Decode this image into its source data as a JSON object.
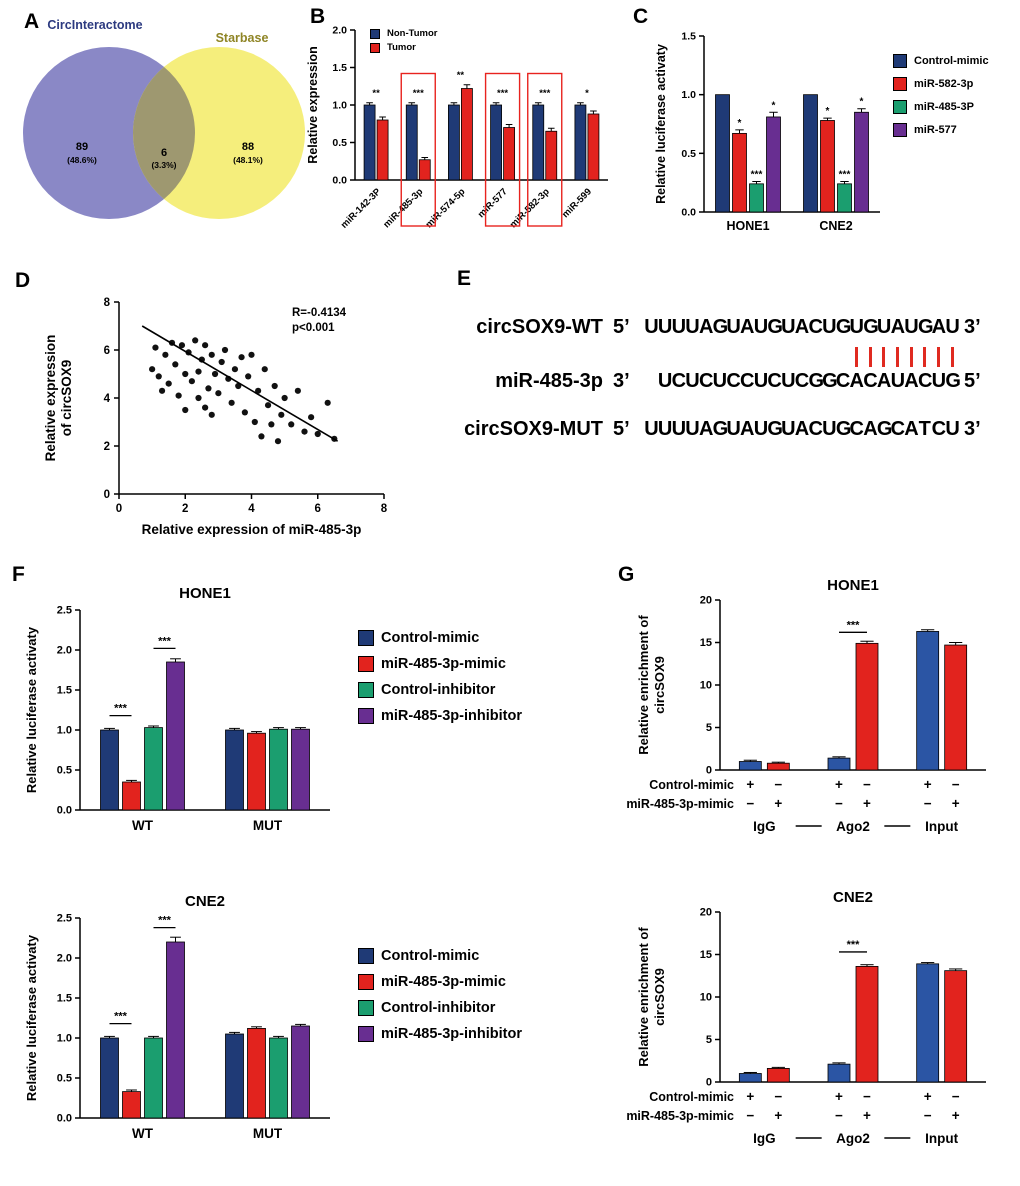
{
  "colors": {
    "navy": "#1f3a76",
    "red": "#e2231e",
    "green": "#1b9e6f",
    "purple": "#682e91",
    "blue2": "#2b55a4",
    "venn_left_fill": "#8a88c6",
    "venn_right_fill": "#f5ee7c",
    "venn_overlap_fill": "#9e9870",
    "venn_left_title": "#2c3a80",
    "venn_right_title": "#8f8526",
    "sig_box": "#e8231e",
    "match_line": "#e02a20"
  },
  "panel_labels": {
    "a": "A",
    "b": "B",
    "c": "C",
    "d": "D",
    "e": "E",
    "f": "F",
    "g": "G"
  },
  "venn": {
    "left_title": "CircInteractome",
    "right_title": "Starbase",
    "left_count": "89",
    "left_pct": "(48.6%)",
    "overlap_count": "6",
    "overlap_pct": "(3.3%)",
    "right_count": "88",
    "right_pct": "(48.1%)"
  },
  "sequence_panel": {
    "rows": [
      {
        "name": "circSOX9-WT",
        "prefix": "5’",
        "seq": "UUUUAGUAUGUACUGUGUAUGAU",
        "suffix": "3’"
      },
      {
        "name": "miR-485-3p",
        "prefix": "3’",
        "seq": "UCUCUCCUCUCGGCACAUACUG",
        "suffix": "5’"
      },
      {
        "name": "circSOX9-MUT",
        "prefix": "5’",
        "seq": "UUUUAGUAUGUACUGCAGCATCU",
        "suffix": "3’"
      }
    ],
    "match_count": 8
  },
  "chart_data": [
    {
      "id": "panel_b",
      "type": "bar",
      "title": "",
      "ylabel": "Relative expression",
      "ylim": [
        0,
        2.0
      ],
      "yticks": [
        0,
        0.5,
        1.0,
        1.5,
        2.0
      ],
      "categories": [
        "miR-142-3P",
        "miR-485-3p",
        "miR-574-5p",
        "miR-577",
        "miR-582-3p",
        "miR-599"
      ],
      "series": [
        {
          "name": "Non-Tumor",
          "color": "navy",
          "values": [
            1.0,
            1.0,
            1.0,
            1.0,
            1.0,
            1.0
          ],
          "errors": [
            0.03,
            0.03,
            0.03,
            0.03,
            0.03,
            0.03
          ]
        },
        {
          "name": "Tumor",
          "color": "red",
          "values": [
            0.8,
            0.27,
            1.22,
            0.7,
            0.65,
            0.88
          ],
          "errors": [
            0.04,
            0.03,
            0.05,
            0.04,
            0.04,
            0.04
          ]
        }
      ],
      "sig_labels": [
        "**",
        "***",
        "**",
        "***",
        "***",
        "*"
      ],
      "boxed_categories": [
        1,
        3,
        4
      ],
      "legend_position": "top-left"
    },
    {
      "id": "panel_c",
      "type": "bar",
      "title": "",
      "ylabel": "Relative luciferase activaty",
      "ylim": [
        0,
        1.5
      ],
      "yticks": [
        0,
        0.5,
        1.0,
        1.5
      ],
      "categories": [
        "HONE1",
        "CNE2"
      ],
      "series": [
        {
          "name": "Control-mimic",
          "color": "navy",
          "values": [
            1.0,
            1.0
          ],
          "errors": [
            0,
            0
          ]
        },
        {
          "name": "miR-582-3p",
          "color": "red",
          "values": [
            0.67,
            0.78
          ],
          "errors": [
            0.03,
            0.02
          ]
        },
        {
          "name": "miR-485-3P",
          "color": "green",
          "values": [
            0.24,
            0.24
          ],
          "errors": [
            0.02,
            0.02
          ]
        },
        {
          "name": "miR-577",
          "color": "purple",
          "values": [
            0.81,
            0.85
          ],
          "errors": [
            0.04,
            0.03
          ]
        }
      ],
      "sig_per_bar": [
        [
          "",
          "*",
          "***",
          "*"
        ],
        [
          "",
          "*",
          "***",
          "*"
        ]
      ],
      "legend_position": "right"
    },
    {
      "id": "panel_d",
      "type": "scatter",
      "xlabel": "Relative expression of miR-485-3p",
      "ylabel": "Relative expression\nof circSOX9",
      "xlim": [
        0,
        8
      ],
      "ylim": [
        0,
        8
      ],
      "xticks": [
        0,
        2,
        4,
        6,
        8
      ],
      "yticks": [
        0,
        2,
        4,
        6,
        8
      ],
      "annotation_lines": [
        "R=-0.4134",
        "p<0.001"
      ],
      "trendline": {
        "x1": 0.7,
        "y1": 7.0,
        "x2": 6.6,
        "y2": 2.2
      },
      "points": [
        [
          1.0,
          5.2
        ],
        [
          1.1,
          6.1
        ],
        [
          1.2,
          4.9
        ],
        [
          1.3,
          4.3
        ],
        [
          1.4,
          5.8
        ],
        [
          1.5,
          4.6
        ],
        [
          1.6,
          6.3
        ],
        [
          1.7,
          5.4
        ],
        [
          1.8,
          4.1
        ],
        [
          1.9,
          6.2
        ],
        [
          2.0,
          5.0
        ],
        [
          2.0,
          3.5
        ],
        [
          2.1,
          5.9
        ],
        [
          2.2,
          4.7
        ],
        [
          2.3,
          6.4
        ],
        [
          2.4,
          5.1
        ],
        [
          2.4,
          4.0
        ],
        [
          2.5,
          5.6
        ],
        [
          2.6,
          6.2
        ],
        [
          2.6,
          3.6
        ],
        [
          2.7,
          4.4
        ],
        [
          2.8,
          5.8
        ],
        [
          2.8,
          3.3
        ],
        [
          2.9,
          5.0
        ],
        [
          3.0,
          4.2
        ],
        [
          3.1,
          5.5
        ],
        [
          3.2,
          6.0
        ],
        [
          3.3,
          4.8
        ],
        [
          3.4,
          3.8
        ],
        [
          3.5,
          5.2
        ],
        [
          3.6,
          4.5
        ],
        [
          3.7,
          5.7
        ],
        [
          3.8,
          3.4
        ],
        [
          3.9,
          4.9
        ],
        [
          4.0,
          5.8
        ],
        [
          4.1,
          3.0
        ],
        [
          4.2,
          4.3
        ],
        [
          4.3,
          2.4
        ],
        [
          4.4,
          5.2
        ],
        [
          4.5,
          3.7
        ],
        [
          4.6,
          2.9
        ],
        [
          4.7,
          4.5
        ],
        [
          4.8,
          2.2
        ],
        [
          4.9,
          3.3
        ],
        [
          5.0,
          4.0
        ],
        [
          5.2,
          2.9
        ],
        [
          5.4,
          4.3
        ],
        [
          5.6,
          2.6
        ],
        [
          5.8,
          3.2
        ],
        [
          6.0,
          2.5
        ],
        [
          6.3,
          3.8
        ],
        [
          6.5,
          2.3
        ]
      ]
    },
    {
      "id": "panel_f_hone1",
      "type": "bar",
      "title": "HONE1",
      "ylabel": "Relative luciferase activaty",
      "ylim": [
        0,
        2.5
      ],
      "yticks": [
        0,
        0.5,
        1.0,
        1.5,
        2.0,
        2.5
      ],
      "categories": [
        "WT",
        "MUT"
      ],
      "series": [
        {
          "name": "Control-mimic",
          "color": "navy",
          "values": [
            1.0,
            1.0
          ],
          "errors": [
            0.02,
            0.02
          ]
        },
        {
          "name": "miR-485-3p-mimic",
          "color": "red",
          "values": [
            0.35,
            0.96
          ],
          "errors": [
            0.02,
            0.02
          ]
        },
        {
          "name": "Control-inhibitor",
          "color": "green",
          "values": [
            1.03,
            1.01
          ],
          "errors": [
            0.02,
            0.02
          ]
        },
        {
          "name": "miR-485-3p-inhibitor",
          "color": "purple",
          "values": [
            1.85,
            1.01
          ],
          "errors": [
            0.04,
            0.02
          ]
        }
      ],
      "sig_brackets": [
        {
          "category": 0,
          "from": 0,
          "to": 1,
          "label": "***",
          "y": 1.18
        },
        {
          "category": 0,
          "from": 2,
          "to": 3,
          "label": "***",
          "y": 2.02
        }
      ],
      "legend_position": "right"
    },
    {
      "id": "panel_f_cne2",
      "type": "bar",
      "title": "CNE2",
      "ylabel": "Relative luciferase activaty",
      "ylim": [
        0,
        2.5
      ],
      "yticks": [
        0,
        0.5,
        1.0,
        1.5,
        2.0,
        2.5
      ],
      "categories": [
        "WT",
        "MUT"
      ],
      "series": [
        {
          "name": "Control-mimic",
          "color": "navy",
          "values": [
            1.0,
            1.05
          ],
          "errors": [
            0.02,
            0.02
          ]
        },
        {
          "name": "miR-485-3p-mimic",
          "color": "red",
          "values": [
            0.33,
            1.12
          ],
          "errors": [
            0.02,
            0.02
          ]
        },
        {
          "name": "Control-inhibitor",
          "color": "green",
          "values": [
            1.0,
            1.0
          ],
          "errors": [
            0.02,
            0.02
          ]
        },
        {
          "name": "miR-485-3p-inhibitor",
          "color": "purple",
          "values": [
            2.2,
            1.15
          ],
          "errors": [
            0.06,
            0.02
          ]
        }
      ],
      "sig_brackets": [
        {
          "category": 0,
          "from": 0,
          "to": 1,
          "label": "***",
          "y": 1.18
        },
        {
          "category": 0,
          "from": 2,
          "to": 3,
          "label": "***",
          "y": 2.38
        }
      ],
      "legend_position": "right"
    },
    {
      "id": "panel_g_hone1",
      "type": "bar",
      "title": "HONE1",
      "ylabel": "Relative enrichment of\ncircSOX9",
      "ylim": [
        0,
        20
      ],
      "yticks": [
        0,
        5,
        10,
        15,
        20
      ],
      "categories": [
        "IgG",
        "Ago2",
        "Input"
      ],
      "series": [
        {
          "name": "Control-mimic",
          "color": "blue2",
          "values": [
            1.0,
            1.4,
            16.3
          ],
          "errors": [
            0.15,
            0.15,
            0.2
          ]
        },
        {
          "name": "miR-485-3p-mimic",
          "color": "red",
          "values": [
            0.8,
            14.9,
            14.7
          ],
          "errors": [
            0.12,
            0.25,
            0.3
          ]
        }
      ],
      "sig_brackets": [
        {
          "category": 1,
          "from": 0,
          "to": 1,
          "label": "***",
          "y": 16.2
        }
      ],
      "condition_rows": [
        {
          "label": "Control-mimic",
          "symbols": [
            "+",
            "−",
            "+",
            "−",
            "+",
            "−"
          ]
        },
        {
          "label": "miR-485-3p-mimic",
          "symbols": [
            "−",
            "+",
            "−",
            "+",
            "−",
            "+"
          ]
        }
      ],
      "group_labels_bottom": true
    },
    {
      "id": "panel_g_cne2",
      "type": "bar",
      "title": "CNE2",
      "ylabel": "Relative enrichment of\ncircSOX9",
      "ylim": [
        0,
        20
      ],
      "yticks": [
        0,
        5,
        10,
        15,
        20
      ],
      "categories": [
        "IgG",
        "Ago2",
        "Input"
      ],
      "series": [
        {
          "name": "Control-mimic",
          "color": "blue2",
          "values": [
            1.0,
            2.1,
            13.9
          ],
          "errors": [
            0.12,
            0.15,
            0.15
          ]
        },
        {
          "name": "miR-485-3p-mimic",
          "color": "red",
          "values": [
            1.6,
            13.6,
            13.1
          ],
          "errors": [
            0.12,
            0.2,
            0.2
          ]
        }
      ],
      "sig_brackets": [
        {
          "category": 1,
          "from": 0,
          "to": 1,
          "label": "***",
          "y": 15.3
        }
      ],
      "condition_rows": [
        {
          "label": "Control-mimic",
          "symbols": [
            "+",
            "−",
            "+",
            "−",
            "+",
            "−"
          ]
        },
        {
          "label": "miR-485-3p-mimic",
          "symbols": [
            "−",
            "+",
            "−",
            "+",
            "−",
            "+"
          ]
        }
      ],
      "group_labels_bottom": true
    }
  ]
}
